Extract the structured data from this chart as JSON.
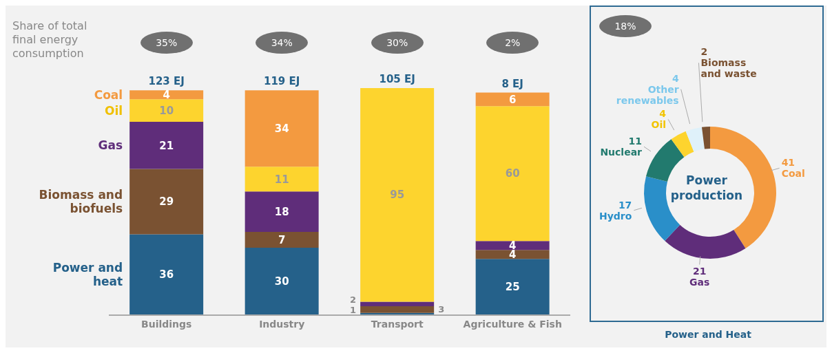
{
  "chart_data": [
    {
      "type": "bar",
      "stacked": true,
      "tick_labels": "x",
      "data_labels": true,
      "categories": [
        "Buildings",
        "Industry",
        "Transport",
        "Agriculture & Fish"
      ],
      "series": [
        {
          "name": "Power and heat",
          "color": "#25618a",
          "values": [
            36,
            30,
            1,
            25
          ]
        },
        {
          "name": "Biomass and biofuels",
          "color": "#7a5232",
          "values": [
            29,
            7,
            3,
            4
          ]
        },
        {
          "name": "Gas",
          "color": "#5f2d7a",
          "values": [
            21,
            18,
            2,
            4
          ]
        },
        {
          "name": "Oil",
          "color": "#fdd42e",
          "values": [
            10,
            11,
            95,
            60
          ]
        },
        {
          "name": "Coal",
          "color": "#f39a40",
          "values": [
            4,
            34,
            null,
            6
          ]
        }
      ],
      "annotations": [
        "Share of total final energy consumption",
        "35%",
        "34%",
        "30%",
        "2%",
        "123 EJ",
        "119 EJ",
        "105 EJ",
        "8 EJ"
      ]
    },
    {
      "type": "donut",
      "xlabel": "Power and Heat",
      "data_labels": true,
      "categories": [
        "Coal",
        "Gas",
        "Hydro",
        "Nuclear",
        "Oil",
        "Other renewables",
        "Biomass and waste"
      ],
      "values": [
        41,
        21,
        17,
        11,
        4,
        4,
        2
      ],
      "colors": [
        "#f39a40",
        "#5f2d7a",
        "#2a8fc9",
        "#227a6e",
        "#fdd42e",
        "#dff1fa",
        "#7a5232"
      ],
      "annotations": [
        "18%",
        "Power production"
      ]
    }
  ]
}
